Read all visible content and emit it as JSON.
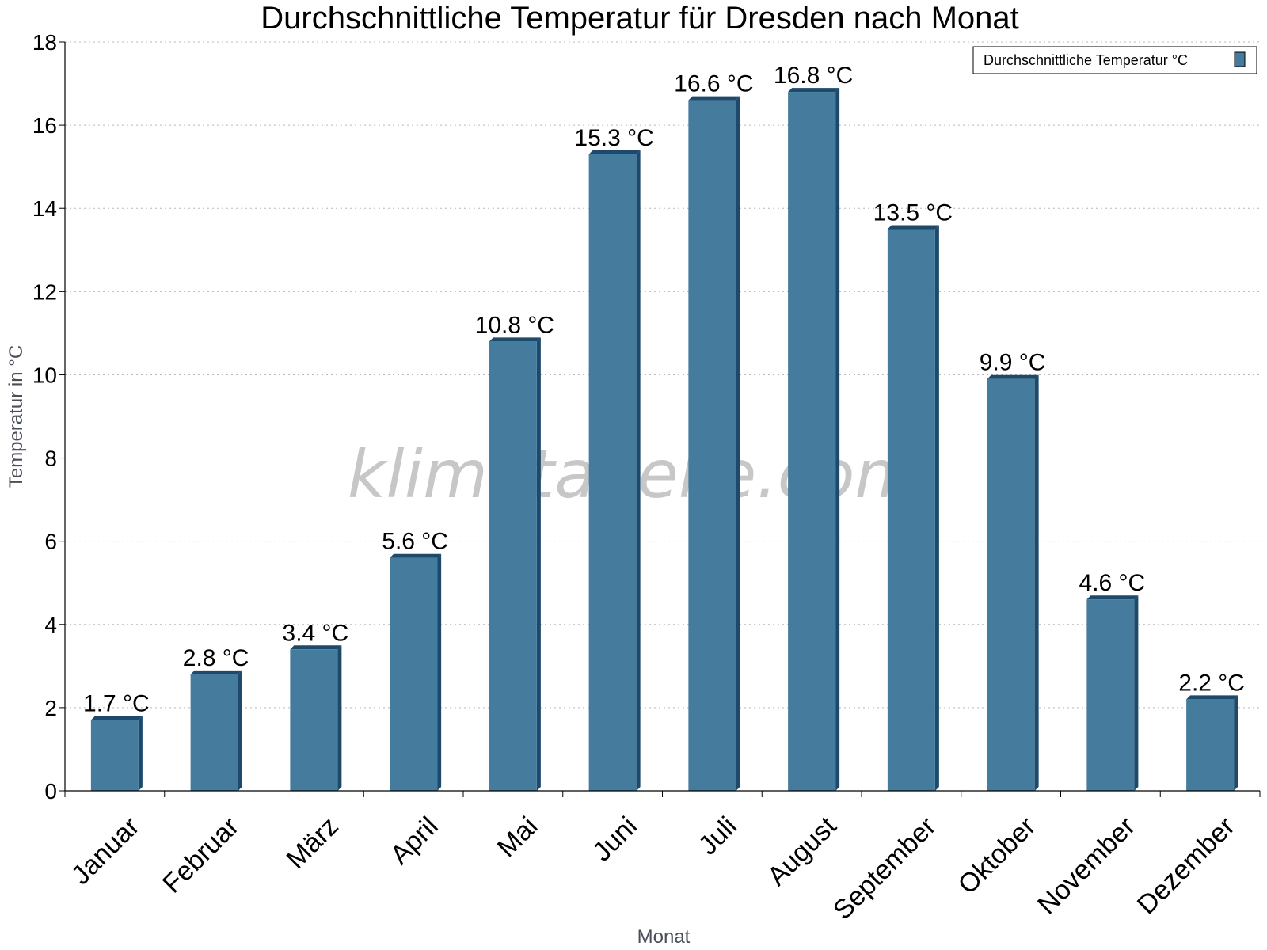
{
  "chart_data": {
    "type": "bar",
    "title": "Durchschnittliche Temperatur für Dresden nach Monat",
    "xlabel": "Monat",
    "ylabel": "Temperatur in °C",
    "ylim": [
      0,
      18
    ],
    "yticks": [
      0,
      2,
      4,
      6,
      8,
      10,
      12,
      14,
      16,
      18
    ],
    "grid": true,
    "legend_position": "top-right",
    "categories": [
      "Januar",
      "Februar",
      "März",
      "April",
      "Mai",
      "Juni",
      "Juli",
      "August",
      "September",
      "Oktober",
      "November",
      "Dezember"
    ],
    "series": [
      {
        "name": "Durchschnittliche Temperatur °C",
        "values": [
          1.7,
          2.8,
          3.4,
          5.6,
          10.8,
          15.3,
          16.6,
          16.8,
          13.5,
          9.9,
          4.6,
          2.2
        ],
        "labels": [
          "1.7 °C",
          "2.8 °C",
          "3.4 °C",
          "5.6 °C",
          "10.8 °C",
          "15.3 °C",
          "16.6 °C",
          "16.8 °C",
          "13.5 °C",
          "9.9 °C",
          "4.6 °C",
          "2.2 °C"
        ],
        "color": "#457b9d",
        "shade_color": "#1d4a6b"
      }
    ]
  },
  "watermark": "klimatabelle.com"
}
